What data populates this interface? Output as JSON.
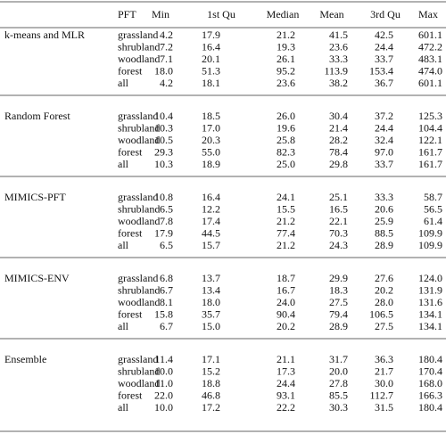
{
  "table": {
    "header": [
      "PFT",
      "Min",
      "1st Qu",
      "Median",
      "Mean",
      "3rd Qu",
      "Max"
    ],
    "groups": [
      {
        "name": "k-means and MLR",
        "rows": [
          [
            "grassland",
            "4.2",
            "17.9",
            "21.2",
            "41.5",
            "42.5",
            "601.1"
          ],
          [
            "shrubland",
            "7.2",
            "16.4",
            "19.3",
            "23.6",
            "24.4",
            "472.2"
          ],
          [
            "woodland",
            "7.1",
            "20.1",
            "26.1",
            "33.3",
            "33.7",
            "483.1"
          ],
          [
            "forest",
            "18.0",
            "51.3",
            "95.2",
            "113.9",
            "153.4",
            "474.0"
          ],
          [
            "all",
            "4.2",
            "18.1",
            "23.6",
            "38.2",
            "36.7",
            "601.1"
          ]
        ]
      },
      {
        "name": "Random Forest",
        "rows": [
          [
            "grassland",
            "10.4",
            "18.5",
            "26.0",
            "30.4",
            "37.2",
            "125.3"
          ],
          [
            "shrubland",
            "10.3",
            "17.0",
            "19.6",
            "21.4",
            "24.4",
            "104.4"
          ],
          [
            "woodland",
            "10.5",
            "20.3",
            "25.8",
            "28.2",
            "32.4",
            "122.1"
          ],
          [
            "forest",
            "29.3",
            "55.0",
            "82.3",
            "78.4",
            "97.0",
            "161.7"
          ],
          [
            "all",
            "10.3",
            "18.9",
            "25.0",
            "29.8",
            "33.7",
            "161.7"
          ]
        ]
      },
      {
        "name": "MIMICS-PFT",
        "rows": [
          [
            "grassland",
            "10.8",
            "16.4",
            "24.1",
            "25.1",
            "33.3",
            "58.7"
          ],
          [
            "shrubland",
            "6.5",
            "12.2",
            "15.5",
            "16.5",
            "20.6",
            "56.5"
          ],
          [
            "woodland",
            "7.8",
            "17.4",
            "21.2",
            "22.1",
            "25.9",
            "61.4"
          ],
          [
            "forest",
            "17.9",
            "44.5",
            "77.4",
            "70.3",
            "88.5",
            "109.9"
          ],
          [
            "all",
            "6.5",
            "15.7",
            "21.2",
            "24.3",
            "28.9",
            "109.9"
          ]
        ]
      },
      {
        "name": "MIMICS-ENV",
        "rows": [
          [
            "grassland",
            "6.8",
            "13.7",
            "18.7",
            "29.9",
            "27.6",
            "124.0"
          ],
          [
            "shrubland",
            "6.7",
            "13.4",
            "16.7",
            "18.3",
            "20.2",
            "131.9"
          ],
          [
            "woodland",
            "8.1",
            "18.0",
            "24.0",
            "27.5",
            "28.0",
            "131.6"
          ],
          [
            "forest",
            "15.8",
            "35.7",
            "90.4",
            "79.4",
            "106.5",
            "134.1"
          ],
          [
            "all",
            "6.7",
            "15.0",
            "20.2",
            "28.9",
            "27.5",
            "134.1"
          ]
        ]
      },
      {
        "name": "Ensemble",
        "rows": [
          [
            "grassland",
            "11.4",
            "17.1",
            "21.1",
            "31.7",
            "36.3",
            "180.4"
          ],
          [
            "shrubland",
            "10.0",
            "15.2",
            "17.3",
            "20.0",
            "21.7",
            "170.4"
          ],
          [
            "woodland",
            "11.0",
            "18.8",
            "24.4",
            "27.8",
            "30.0",
            "168.0"
          ],
          [
            "forest",
            "22.0",
            "46.8",
            "93.1",
            "85.5",
            "112.7",
            "166.3"
          ],
          [
            "all",
            "10.0",
            "17.2",
            "22.2",
            "30.3",
            "31.5",
            "180.4"
          ]
        ]
      }
    ]
  }
}
